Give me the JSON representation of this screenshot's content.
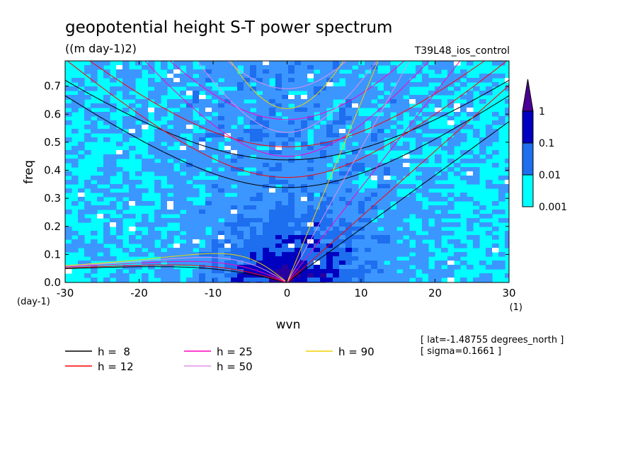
{
  "chart_data": {
    "type": "heatmap",
    "title": "geopotential height S-T power spectrum",
    "subtitle": "((m day-1)2)",
    "run_label": "T39L48_ios_control",
    "xlabel": "wvn",
    "ylabel": "freq",
    "x_unit": "(1)",
    "y_unit": "(day-1)",
    "xlim": [
      -30,
      30
    ],
    "ylim": [
      0,
      0.79
    ],
    "xticks": [
      -30,
      -20,
      -10,
      0,
      10,
      20,
      30
    ],
    "xtick_labels": [
      "-30",
      "-20",
      "-10",
      "0",
      "10",
      "20",
      "30"
    ],
    "yticks": [
      0,
      0.1,
      0.2,
      0.3,
      0.4,
      0.5,
      0.6,
      0.7
    ],
    "ytick_labels": [
      "0.0",
      "0.1",
      "0.2",
      "0.3",
      "0.4",
      "0.5",
      "0.6",
      "0.7"
    ],
    "colorbar": {
      "levels": [
        "0.001",
        "0.01",
        "0.1",
        "1"
      ],
      "colors": [
        "#00ffff",
        "#1e6ef0",
        "#0000c0",
        "#4b0096"
      ]
    },
    "fill_colors": [
      "#00ffff",
      "#3c96ff",
      "#1e6ef0",
      "#0000c0",
      "#2800a0",
      "#4b0096"
    ],
    "dispersion_curves": [
      {
        "name": "h =  8",
        "h": 8,
        "color": "#000000"
      },
      {
        "name": "h = 12",
        "h": 12,
        "color": "#ff0000"
      },
      {
        "name": "h = 25",
        "h": 25,
        "color": "#ff00c0"
      },
      {
        "name": "h = 50",
        "h": 50,
        "color": "#e090e8"
      },
      {
        "name": "h = 90",
        "h": 90,
        "color": "#f0d200"
      }
    ],
    "annotations": [
      "[ lat=-1.48755 degrees_north ]",
      "[ sigma=0.1661 ]"
    ]
  }
}
